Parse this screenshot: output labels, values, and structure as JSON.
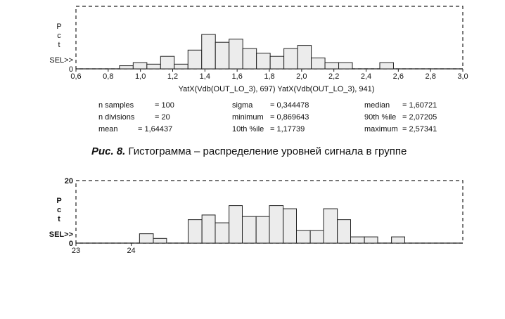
{
  "chart_data": [
    {
      "type": "bar",
      "title": "",
      "ylabel": "Pct",
      "ylabel_letters": [
        "P",
        "c",
        "t"
      ],
      "marker_label": "SEL>>",
      "y_tick_labels": [
        "0"
      ],
      "xlabel": "YatX(Vdb(OUT_LO_3), 697)    YatX(Vdb(OUT_LO_3), 941)",
      "xlim": [
        0.6,
        3.0
      ],
      "ylim": [
        0,
        20
      ],
      "grid": false,
      "x_tick_labels": [
        "0,6",
        "0,8",
        "1,0",
        "1,2",
        "1,4",
        "1,6",
        "1,8",
        "2,0",
        "2,2",
        "2,4",
        "2,6",
        "2,8",
        "3,0"
      ],
      "bins": [
        {
          "start": 0.87,
          "end": 0.955,
          "value": 1
        },
        {
          "start": 0.955,
          "end": 1.04,
          "value": 2
        },
        {
          "start": 1.04,
          "end": 1.125,
          "value": 1.5
        },
        {
          "start": 1.125,
          "end": 1.21,
          "value": 4
        },
        {
          "start": 1.21,
          "end": 1.295,
          "value": 1.5
        },
        {
          "start": 1.295,
          "end": 1.38,
          "value": 6
        },
        {
          "start": 1.38,
          "end": 1.465,
          "value": 11
        },
        {
          "start": 1.465,
          "end": 1.55,
          "value": 8.5
        },
        {
          "start": 1.55,
          "end": 1.635,
          "value": 9.5
        },
        {
          "start": 1.635,
          "end": 1.72,
          "value": 6.5
        },
        {
          "start": 1.72,
          "end": 1.805,
          "value": 5
        },
        {
          "start": 1.805,
          "end": 1.89,
          "value": 4
        },
        {
          "start": 1.89,
          "end": 1.975,
          "value": 6.5
        },
        {
          "start": 1.975,
          "end": 2.06,
          "value": 7.5
        },
        {
          "start": 2.06,
          "end": 2.145,
          "value": 3.5
        },
        {
          "start": 2.145,
          "end": 2.23,
          "value": 2
        },
        {
          "start": 2.23,
          "end": 2.315,
          "value": 2
        },
        {
          "start": 2.485,
          "end": 2.57,
          "value": 2
        }
      ],
      "stats": [
        [
          {
            "label": "n samples",
            "value": "= 100"
          },
          {
            "label": "n divisions",
            "value": "= 20"
          },
          {
            "label": "mean",
            "value": "= 1,64437"
          }
        ],
        [
          {
            "label": "sigma",
            "value": "= 0,344478"
          },
          {
            "label": "minimum",
            "value": "= 0,869643"
          },
          {
            "label": "10th %ile",
            "value": "= 1,17739"
          }
        ],
        [
          {
            "label": "median",
            "value": "= 1,60721"
          },
          {
            "label": "90th %ile",
            "value": "= 2,07205"
          },
          {
            "label": "maximum",
            "value": "= 2,57341"
          }
        ]
      ]
    },
    {
      "type": "bar",
      "title": "",
      "ylabel": "Pct",
      "ylabel_letters": [
        "P",
        "c",
        "t"
      ],
      "marker_label": "SEL>>",
      "y_tick_labels": [
        "20",
        "0"
      ],
      "xlabel": "",
      "xlim": [
        23,
        30
      ],
      "ylim": [
        0,
        20
      ],
      "grid": false,
      "x_tick_labels": [
        "23",
        "24"
      ],
      "bins": [
        {
          "start": 24.15,
          "end": 24.4,
          "value": 3
        },
        {
          "start": 24.4,
          "end": 24.64,
          "value": 1.5
        },
        {
          "start": 25.03,
          "end": 25.28,
          "value": 7.5
        },
        {
          "start": 25.28,
          "end": 25.52,
          "value": 9
        },
        {
          "start": 25.52,
          "end": 25.77,
          "value": 6.5
        },
        {
          "start": 25.77,
          "end": 26.01,
          "value": 12
        },
        {
          "start": 26.01,
          "end": 26.26,
          "value": 8.5
        },
        {
          "start": 26.26,
          "end": 26.5,
          "value": 8.5
        },
        {
          "start": 26.5,
          "end": 26.75,
          "value": 12
        },
        {
          "start": 26.75,
          "end": 26.99,
          "value": 11
        },
        {
          "start": 26.99,
          "end": 27.24,
          "value": 4
        },
        {
          "start": 27.24,
          "end": 27.48,
          "value": 4
        },
        {
          "start": 27.48,
          "end": 27.73,
          "value": 11
        },
        {
          "start": 27.73,
          "end": 27.97,
          "value": 7.5
        },
        {
          "start": 27.97,
          "end": 28.22,
          "value": 2
        },
        {
          "start": 28.22,
          "end": 28.46,
          "value": 2
        },
        {
          "start": 28.71,
          "end": 28.95,
          "value": 2
        }
      ]
    }
  ],
  "caption": {
    "figure": "Рис. 8.",
    "text": " Гистограмма – распределение уровней сигнала в группе"
  }
}
